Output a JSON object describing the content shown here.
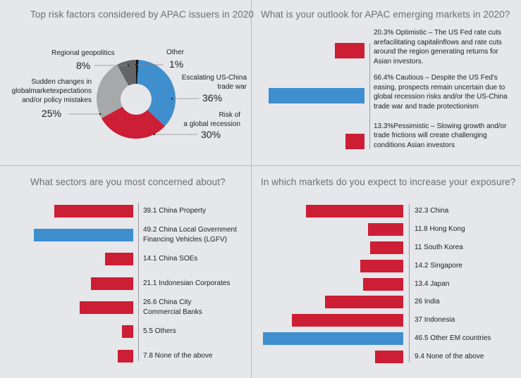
{
  "colors": {
    "red": "#cc1e35",
    "blue": "#3f8ecd",
    "light_gray": "#a7a8aa",
    "dark_gray": "#636466",
    "black": "#111111",
    "hole": "#e6e7ea"
  },
  "chart_data": [
    {
      "type": "pie",
      "title": "Top risk factors considered by APAC issuers in 2020",
      "slices": [
        {
          "label": "Other",
          "value": 1,
          "display": "1%",
          "color": "#111111"
        },
        {
          "label": "Escalating US-China trade war",
          "value": 36,
          "display": "36%",
          "color": "#3f8ecd"
        },
        {
          "label": "Risk of a global recession",
          "value": 30,
          "display": "30%",
          "color": "#cc1e35"
        },
        {
          "label": "Sudden changes in globalmarketexpectations and/or policy mistakes",
          "value": 25,
          "display": "25%",
          "color": "#a7a8aa"
        },
        {
          "label": "Regional geopolitics",
          "value": 8,
          "display": "8%",
          "color": "#636466"
        }
      ],
      "label_lines": {
        "other": [
          "Other"
        ],
        "trade_war": [
          "Escalating US-China",
          "trade war"
        ],
        "recession": [
          "Risk of",
          "a global recession"
        ],
        "sudden": [
          "Sudden changes in",
          "globalmarketexpectations",
          "and/or policy mistakes"
        ],
        "geopolitics": [
          "Regional geopolitics"
        ]
      }
    },
    {
      "type": "bar",
      "orientation": "horizontal",
      "title": "What is your outlook for APAC emerging markets in 2020?",
      "categories": [
        "Optimistic",
        "Cautious",
        "Pessimistic"
      ],
      "values": [
        20.3,
        66.4,
        13.3
      ],
      "unit": "%",
      "colors": [
        "#cc1e35",
        "#3f8ecd",
        "#cc1e35"
      ],
      "labels": [
        [
          "20.3% Optimistic – The US Fed rate cuts",
          "arefacilitating capitalinflows and rate cuts",
          "around the region generating returns for",
          "Asian investors."
        ],
        [
          "66.4% Cautious – Despite the US Fed's",
          "easing, prospects remain uncertain due to",
          "global recession risks and/or the US-China",
          "trade war and trade protectionism"
        ],
        [
          "13.3%Pessimistic – Slowing growth and/or",
          "trade frictions will create challenging",
          "conditions Asian investors"
        ]
      ]
    },
    {
      "type": "bar",
      "orientation": "horizontal",
      "title": "What sectors are you most concerned about?",
      "categories": [
        "China Property",
        "China Local Government Financing Vehicles (LGFV)",
        "China SOEs",
        "Indonesian Corporates",
        "China City Commercial Banks",
        "Others",
        "None of the above"
      ],
      "values": [
        39.1,
        49.2,
        14.1,
        21.1,
        26.6,
        5.5,
        7.8
      ],
      "colors": [
        "#cc1e35",
        "#3f8ecd",
        "#cc1e35",
        "#cc1e35",
        "#cc1e35",
        "#cc1e35",
        "#cc1e35"
      ],
      "labels": [
        [
          "39.1  China Property"
        ],
        [
          "49.2 China Local Government",
          "Financing Vehicles (LGFV)"
        ],
        [
          "14.1  China SOEs"
        ],
        [
          "21.1 Indonesian Corporates"
        ],
        [
          "26.6  China City",
          "Commercial Banks"
        ],
        [
          "5.5  Others"
        ],
        [
          "7.8 None of the above"
        ]
      ]
    },
    {
      "type": "bar",
      "orientation": "horizontal",
      "title": "In which markets do you expect to increase your exposure?",
      "categories": [
        "China",
        "Hong Kong",
        "South Korea",
        "Singapore",
        "Japan",
        "India",
        "Indonesia",
        "Other EM countries",
        "None of the above"
      ],
      "values": [
        32.3,
        11.8,
        11,
        14.2,
        13.4,
        26,
        37,
        46.5,
        9.4
      ],
      "colors": [
        "#cc1e35",
        "#cc1e35",
        "#cc1e35",
        "#cc1e35",
        "#cc1e35",
        "#cc1e35",
        "#cc1e35",
        "#3f8ecd",
        "#cc1e35"
      ],
      "labels": [
        [
          "32.3  China"
        ],
        [
          "11.8  Hong Kong"
        ],
        [
          "11  South Korea"
        ],
        [
          "14.2  Singapore"
        ],
        [
          "13.4  Japan"
        ],
        [
          "26  India"
        ],
        [
          "37  Indonesia"
        ],
        [
          "46.5 Other EM countries"
        ],
        [
          "9.4  None of the above"
        ]
      ]
    }
  ]
}
